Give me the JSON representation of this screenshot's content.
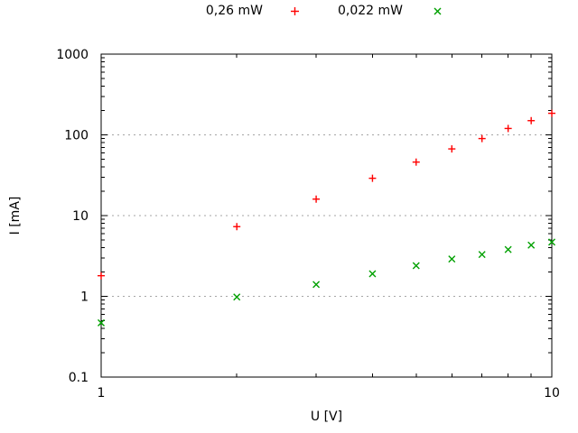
{
  "window": {
    "background": "#ffffff"
  },
  "axes": {
    "xlabel": "U [V]",
    "ylabel": "I [mA]",
    "x_tick_labels": [
      "1",
      "10"
    ],
    "y_tick_labels": [
      "0.1",
      "1",
      "10",
      "100",
      "1000"
    ]
  },
  "legend": {
    "position": "top-center-outside",
    "entries": [
      {
        "label": "0,26 mW",
        "marker": "plus",
        "color": "#ff0000"
      },
      {
        "label": "0,022 mW",
        "marker": "cross",
        "color": "#00a000"
      }
    ]
  },
  "chart_data": {
    "type": "scatter",
    "title": "",
    "xlabel": "U [V]",
    "ylabel": "I [mA]",
    "x_scale": "log",
    "y_scale": "log",
    "xlim": [
      1,
      10
    ],
    "ylim": [
      0.1,
      1000
    ],
    "x_major_ticks": [
      1,
      10
    ],
    "y_major_ticks": [
      0.1,
      1,
      10,
      100,
      1000
    ],
    "grid": {
      "horizontal": true,
      "vertical": false,
      "style": "dashed",
      "color": "#a6a6a6",
      "at": [
        1,
        10,
        100
      ]
    },
    "legend_position": "top-center",
    "x": [
      1,
      2,
      3,
      4,
      5,
      6,
      7,
      8,
      9,
      10
    ],
    "series": [
      {
        "name": "0,26 mW",
        "marker": "plus",
        "color": "#ff0000",
        "values": [
          1.8,
          7.3,
          16,
          29,
          46,
          67,
          90,
          120,
          150,
          185
        ]
      },
      {
        "name": "0,022 mW",
        "marker": "cross",
        "color": "#00a000",
        "values": [
          0.47,
          0.98,
          1.4,
          1.9,
          2.4,
          2.9,
          3.3,
          3.8,
          4.3,
          4.7
        ]
      }
    ]
  }
}
